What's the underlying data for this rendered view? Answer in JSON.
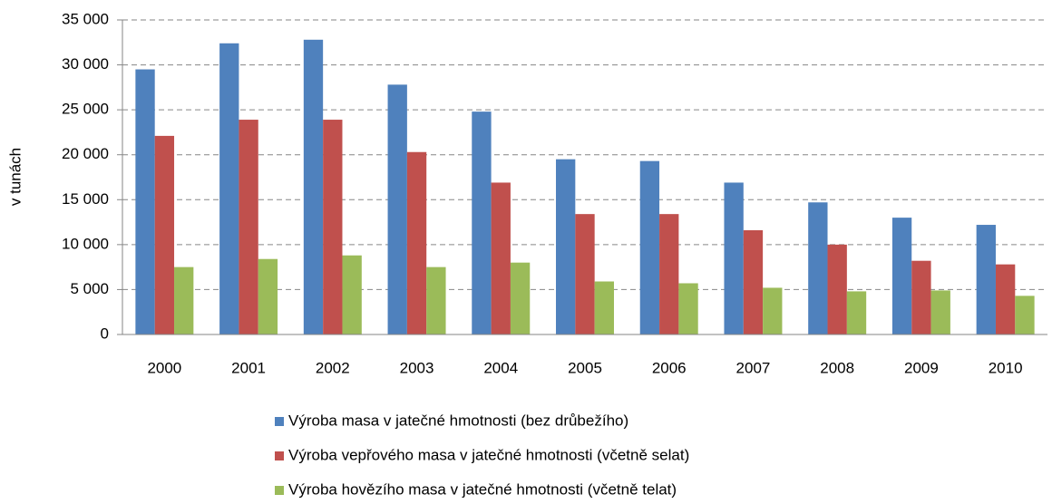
{
  "chart_data": {
    "type": "bar",
    "y_label": "v tunách",
    "categories": [
      "2000",
      "2001",
      "2002",
      "2003",
      "2004",
      "2005",
      "2006",
      "2007",
      "2008",
      "2009",
      "2010"
    ],
    "series": [
      {
        "name": "Výroba masa v jatečné hmotnosti (bez drůbežího)",
        "color": "#4f81bd",
        "values": [
          29500,
          32400,
          32800,
          27800,
          24800,
          19500,
          19300,
          16900,
          14700,
          13000,
          12200
        ]
      },
      {
        "name": "Výroba vepřového masa v jatečné hmotnosti (včetně selat)",
        "color": "#c0504d",
        "values": [
          22100,
          23900,
          23900,
          20300,
          16900,
          13400,
          13400,
          11600,
          10000,
          8200,
          7800
        ]
      },
      {
        "name": "Výroba hovězího masa v jatečné hmotnosti (včetně telat)",
        "color": "#9bbb59",
        "values": [
          7500,
          8400,
          8800,
          7500,
          8000,
          5900,
          5700,
          5200,
          4800,
          4900,
          4300
        ]
      }
    ],
    "ylim": [
      0,
      35000
    ],
    "yticks": [
      0,
      {
        "value": 5000,
        "label": "5 000"
      },
      {
        "value": 10000,
        "label": "10 000"
      },
      {
        "value": 15000,
        "label": "15 000"
      },
      {
        "value": 20000,
        "label": "20 000"
      },
      {
        "value": 25000,
        "label": "25 000"
      },
      {
        "value": 30000,
        "label": "30 000"
      },
      {
        "value": 35000,
        "label": "35 000"
      }
    ],
    "grid": true,
    "legend": "bottom"
  }
}
